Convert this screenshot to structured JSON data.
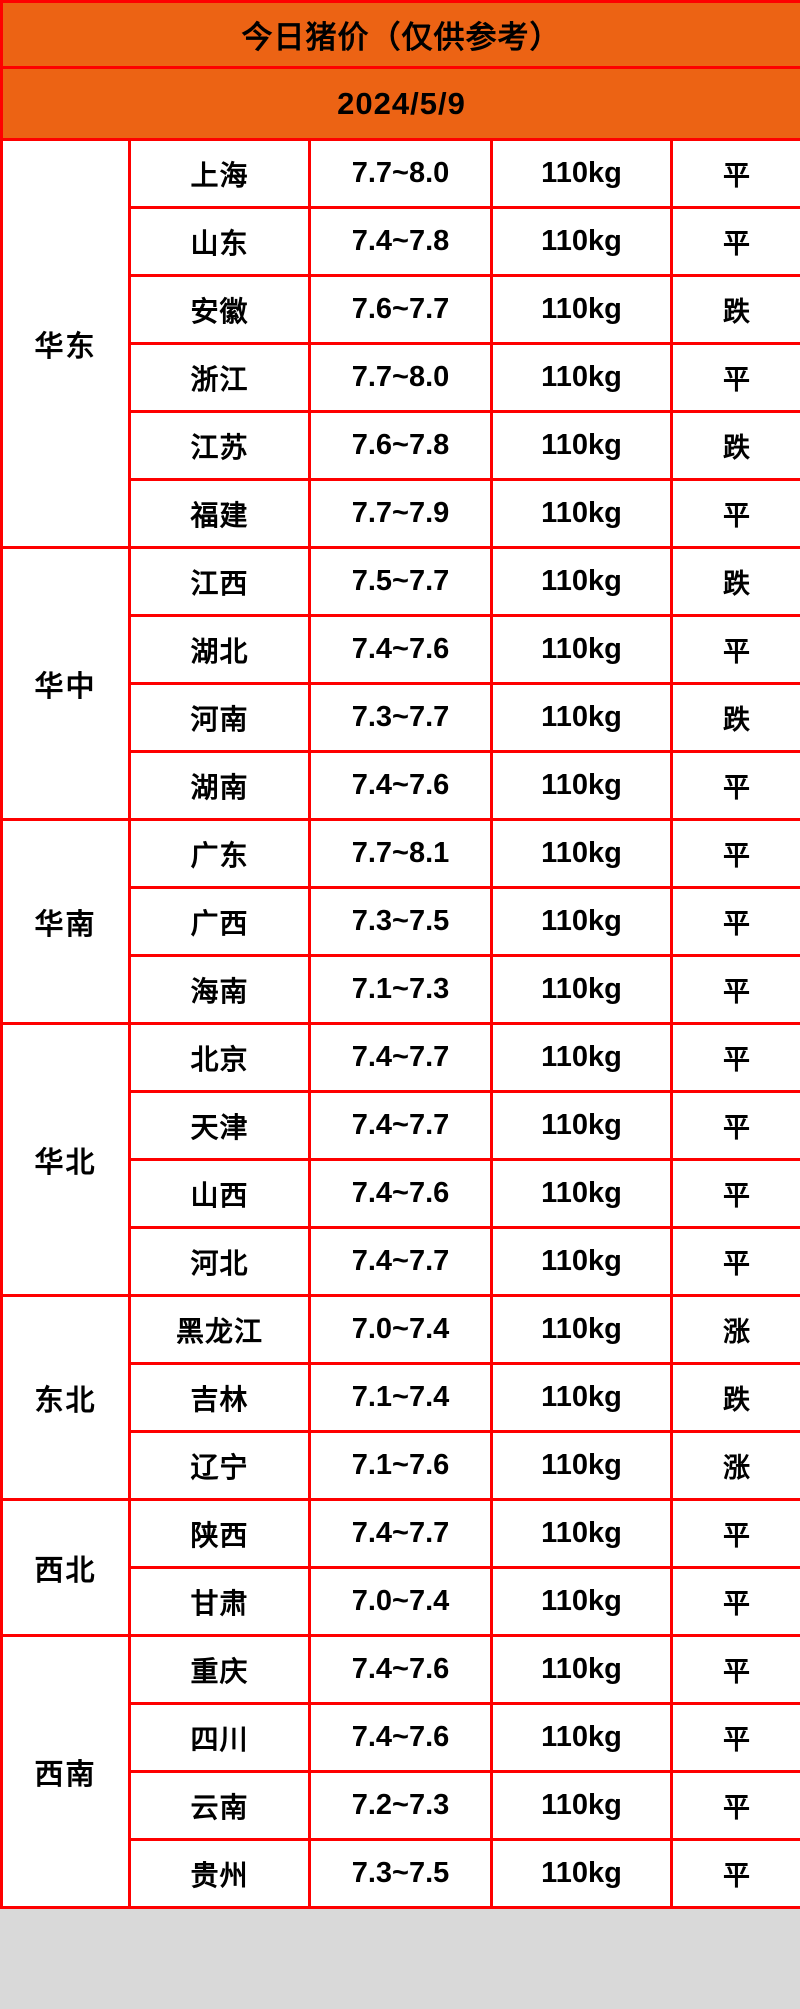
{
  "title": "今日猪价（仅供参考）",
  "date": "2024/5/9",
  "colors": {
    "header_bg": "#ec6314",
    "grid": "#fe0000",
    "trend_up": "#fb3b4e",
    "trend_down": "#13cd13",
    "text": "#000000"
  },
  "trend_class_map": {
    "涨": "up",
    "跌": "down",
    "平": "flat"
  },
  "regions": [
    {
      "name": "华东",
      "rows": [
        {
          "province": "上海",
          "price": "7.7~8.0",
          "weight": "110kg",
          "trend": "平"
        },
        {
          "province": "山东",
          "price": "7.4~7.8",
          "weight": "110kg",
          "trend": "平"
        },
        {
          "province": "安徽",
          "price": "7.6~7.7",
          "weight": "110kg",
          "trend": "跌"
        },
        {
          "province": "浙江",
          "price": "7.7~8.0",
          "weight": "110kg",
          "trend": "平"
        },
        {
          "province": "江苏",
          "price": "7.6~7.8",
          "weight": "110kg",
          "trend": "跌"
        },
        {
          "province": "福建",
          "price": "7.7~7.9",
          "weight": "110kg",
          "trend": "平"
        }
      ]
    },
    {
      "name": "华中",
      "rows": [
        {
          "province": "江西",
          "price": "7.5~7.7",
          "weight": "110kg",
          "trend": "跌"
        },
        {
          "province": "湖北",
          "price": "7.4~7.6",
          "weight": "110kg",
          "trend": "平"
        },
        {
          "province": "河南",
          "price": "7.3~7.7",
          "weight": "110kg",
          "trend": "跌"
        },
        {
          "province": "湖南",
          "price": "7.4~7.6",
          "weight": "110kg",
          "trend": "平"
        }
      ]
    },
    {
      "name": "华南",
      "rows": [
        {
          "province": "广东",
          "price": "7.7~8.1",
          "weight": "110kg",
          "trend": "平"
        },
        {
          "province": "广西",
          "price": "7.3~7.5",
          "weight": "110kg",
          "trend": "平"
        },
        {
          "province": "海南",
          "price": "7.1~7.3",
          "weight": "110kg",
          "trend": "平"
        }
      ]
    },
    {
      "name": "华北",
      "rows": [
        {
          "province": "北京",
          "price": "7.4~7.7",
          "weight": "110kg",
          "trend": "平"
        },
        {
          "province": "天津",
          "price": "7.4~7.7",
          "weight": "110kg",
          "trend": "平"
        },
        {
          "province": "山西",
          "price": "7.4~7.6",
          "weight": "110kg",
          "trend": "平"
        },
        {
          "province": "河北",
          "price": "7.4~7.7",
          "weight": "110kg",
          "trend": "平"
        }
      ]
    },
    {
      "name": "东北",
      "rows": [
        {
          "province": "黑龙江",
          "price": "7.0~7.4",
          "weight": "110kg",
          "trend": "涨"
        },
        {
          "province": "吉林",
          "price": "7.1~7.4",
          "weight": "110kg",
          "trend": "跌"
        },
        {
          "province": "辽宁",
          "price": "7.1~7.6",
          "weight": "110kg",
          "trend": "涨"
        }
      ]
    },
    {
      "name": "西北",
      "rows": [
        {
          "province": "陕西",
          "price": "7.4~7.7",
          "weight": "110kg",
          "trend": "平"
        },
        {
          "province": "甘肃",
          "price": "7.0~7.4",
          "weight": "110kg",
          "trend": "平"
        }
      ]
    },
    {
      "name": "西南",
      "rows": [
        {
          "province": "重庆",
          "price": "7.4~7.6",
          "weight": "110kg",
          "trend": "平"
        },
        {
          "province": "四川",
          "price": "7.4~7.6",
          "weight": "110kg",
          "trend": "平"
        },
        {
          "province": "云南",
          "price": "7.2~7.3",
          "weight": "110kg",
          "trend": "平"
        },
        {
          "province": "贵州",
          "price": "7.3~7.5",
          "weight": "110kg",
          "trend": "平"
        }
      ]
    }
  ]
}
